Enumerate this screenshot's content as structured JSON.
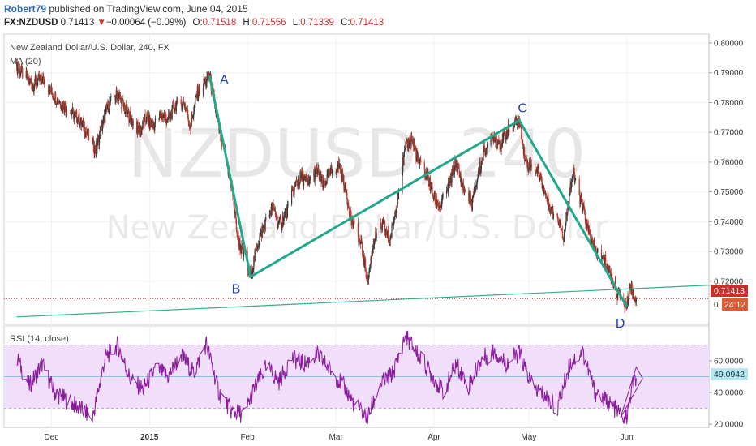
{
  "header": {
    "author": "Robert79",
    "published": "published on TradingView.com, June 04, 2015",
    "symbol": "FX:NZDUSD",
    "last": "0.71413",
    "change_arrow": "▼",
    "change": "−0.00064 (−0.09%)",
    "o_label": "O:",
    "o": "0.71518",
    "h_label": "H:",
    "h": "0.71556",
    "l_label": "L:",
    "l": "0.71339",
    "c_label": "C:",
    "c": "0.71413"
  },
  "price_pane": {
    "title": "New Zealand Dollar/U.S. Dollar, 240, FX",
    "indicator": "MA (20)",
    "watermark_symbol": "NZDUSD, 240",
    "watermark_name": "New Zealand Dollar/U.S. Dollar",
    "price_badge": "0.71413",
    "countdown_badge": "24:12",
    "axis_zero_label": "0"
  },
  "rsi_pane": {
    "title": "RSI (14, close)",
    "value_badge": "49.0942"
  },
  "colors": {
    "pattern": "#1fa88a",
    "trendline": "#2bb08c",
    "rsi_line": "#8b1a9e",
    "rsi_band": "#f1defa",
    "price_badge": "#c9302c",
    "rsi_badge": "#b5e6f0",
    "labels": "#1f3fae"
  },
  "chart_data": [
    {
      "type": "candlestick",
      "title": "New Zealand Dollar/U.S. Dollar, 240, FX",
      "x_tick_labels": [
        "Dec",
        "2015",
        "Feb",
        "Mar",
        "Apr",
        "May",
        "Jun"
      ],
      "y_tick_labels": [
        "0.80000",
        "0.79000",
        "0.78000",
        "0.77000",
        "0.76000",
        "0.75000",
        "0.74000",
        "0.73000",
        "0.72000"
      ],
      "ylim": [
        0.7055,
        0.803
      ],
      "last_price": 0.71413,
      "pattern_points": [
        {
          "label": "A",
          "date": "2015-01-20",
          "price": 0.789
        },
        {
          "label": "B",
          "date": "2015-02-02",
          "price": 0.7215
        },
        {
          "label": "C",
          "date": "2015-04-28",
          "price": 0.774
        },
        {
          "label": "D",
          "date": "2015-06-01",
          "price": 0.7115
        }
      ],
      "trendline": [
        {
          "date": "2014-11-20",
          "price": 0.708
        },
        {
          "date": "2015-06-28",
          "price": 0.7187
        }
      ],
      "close_path": [
        [
          "2014-11-20",
          0.792
        ],
        [
          "2014-11-25",
          0.786
        ],
        [
          "2014-11-28",
          0.788
        ],
        [
          "2014-12-02",
          0.782
        ],
        [
          "2014-12-05",
          0.779
        ],
        [
          "2014-12-08",
          0.776
        ],
        [
          "2014-12-10",
          0.774
        ],
        [
          "2014-12-12",
          0.77
        ],
        [
          "2014-12-15",
          0.764
        ],
        [
          "2014-12-17",
          0.772
        ],
        [
          "2014-12-19",
          0.779
        ],
        [
          "2014-12-22",
          0.783
        ],
        [
          "2014-12-24",
          0.778
        ],
        [
          "2014-12-29",
          0.77
        ],
        [
          "2014-12-31",
          0.775
        ],
        [
          "2015-01-02",
          0.772
        ],
        [
          "2015-01-05",
          0.776
        ],
        [
          "2015-01-07",
          0.774
        ],
        [
          "2015-01-09",
          0.779
        ],
        [
          "2015-01-12",
          0.78
        ],
        [
          "2015-01-14",
          0.772
        ],
        [
          "2015-01-16",
          0.783
        ],
        [
          "2015-01-20",
          0.789
        ],
        [
          "2015-01-22",
          0.777
        ],
        [
          "2015-01-24",
          0.765
        ],
        [
          "2015-01-27",
          0.752
        ],
        [
          "2015-01-29",
          0.734
        ],
        [
          "2015-02-02",
          0.7215
        ],
        [
          "2015-02-04",
          0.732
        ],
        [
          "2015-02-06",
          0.738
        ],
        [
          "2015-02-09",
          0.745
        ],
        [
          "2015-02-11",
          0.739
        ],
        [
          "2015-02-13",
          0.742
        ],
        [
          "2015-02-16",
          0.752
        ],
        [
          "2015-02-18",
          0.755
        ],
        [
          "2015-02-20",
          0.753
        ],
        [
          "2015-02-23",
          0.757
        ],
        [
          "2015-02-25",
          0.752
        ],
        [
          "2015-02-27",
          0.756
        ],
        [
          "2015-03-02",
          0.759
        ],
        [
          "2015-03-04",
          0.751
        ],
        [
          "2015-03-06",
          0.74
        ],
        [
          "2015-03-09",
          0.732
        ],
        [
          "2015-03-11",
          0.72
        ],
        [
          "2015-03-12",
          0.727
        ],
        [
          "2015-03-13",
          0.734
        ],
        [
          "2015-03-16",
          0.739
        ],
        [
          "2015-03-18",
          0.733
        ],
        [
          "2015-03-20",
          0.745
        ],
        [
          "2015-03-23",
          0.765
        ],
        [
          "2015-03-25",
          0.768
        ],
        [
          "2015-03-27",
          0.76
        ],
        [
          "2015-03-30",
          0.755
        ],
        [
          "2015-04-01",
          0.748
        ],
        [
          "2015-04-03",
          0.745
        ],
        [
          "2015-04-06",
          0.753
        ],
        [
          "2015-04-08",
          0.76
        ],
        [
          "2015-04-10",
          0.752
        ],
        [
          "2015-04-13",
          0.746
        ],
        [
          "2015-04-15",
          0.756
        ],
        [
          "2015-04-17",
          0.764
        ],
        [
          "2015-04-20",
          0.769
        ],
        [
          "2015-04-22",
          0.766
        ],
        [
          "2015-04-24",
          0.77
        ],
        [
          "2015-04-28",
          0.774
        ],
        [
          "2015-04-30",
          0.76
        ],
        [
          "2015-05-04",
          0.757
        ],
        [
          "2015-05-06",
          0.75
        ],
        [
          "2015-05-08",
          0.744
        ],
        [
          "2015-05-11",
          0.74
        ],
        [
          "2015-05-12",
          0.734
        ],
        [
          "2015-05-14",
          0.751
        ],
        [
          "2015-05-15",
          0.756
        ],
        [
          "2015-05-18",
          0.745
        ],
        [
          "2015-05-20",
          0.736
        ],
        [
          "2015-05-22",
          0.73
        ],
        [
          "2015-05-25",
          0.727
        ],
        [
          "2015-05-27",
          0.722
        ],
        [
          "2015-05-29",
          0.716
        ],
        [
          "2015-06-01",
          0.7115
        ],
        [
          "2015-06-02",
          0.719
        ],
        [
          "2015-06-03",
          0.716
        ],
        [
          "2015-06-04",
          0.7141
        ]
      ]
    },
    {
      "type": "line",
      "title": "RSI (14, close)",
      "y_tick_labels": [
        "60.0000",
        "40.0000",
        "20.0000"
      ],
      "ylim": [
        18,
        82
      ],
      "band": [
        30,
        70
      ],
      "midline": 50,
      "last_value": 49.0942,
      "series": [
        {
          "values": [
            [
              "2014-11-20",
              62
            ],
            [
              "2014-11-24",
              44
            ],
            [
              "2014-11-28",
              58
            ],
            [
              "2014-12-02",
              40
            ],
            [
              "2014-12-06",
              35
            ],
            [
              "2014-12-10",
              30
            ],
            [
              "2014-12-14",
              24
            ],
            [
              "2014-12-18",
              62
            ],
            [
              "2014-12-22",
              70
            ],
            [
              "2014-12-26",
              48
            ],
            [
              "2014-12-30",
              42
            ],
            [
              "2015-01-03",
              55
            ],
            [
              "2015-01-07",
              50
            ],
            [
              "2015-01-11",
              64
            ],
            [
              "2015-01-15",
              52
            ],
            [
              "2015-01-19",
              71
            ],
            [
              "2015-01-23",
              40
            ],
            [
              "2015-01-27",
              28
            ],
            [
              "2015-01-31",
              26
            ],
            [
              "2015-02-03",
              42
            ],
            [
              "2015-02-07",
              56
            ],
            [
              "2015-02-11",
              47
            ],
            [
              "2015-02-15",
              62
            ],
            [
              "2015-02-19",
              58
            ],
            [
              "2015-02-23",
              64
            ],
            [
              "2015-02-27",
              55
            ],
            [
              "2015-03-03",
              45
            ],
            [
              "2015-03-07",
              32
            ],
            [
              "2015-03-11",
              24
            ],
            [
              "2015-03-15",
              45
            ],
            [
              "2015-03-19",
              52
            ],
            [
              "2015-03-23",
              76
            ],
            [
              "2015-03-27",
              64
            ],
            [
              "2015-03-31",
              52
            ],
            [
              "2015-04-04",
              40
            ],
            [
              "2015-04-08",
              58
            ],
            [
              "2015-04-12",
              44
            ],
            [
              "2015-04-16",
              61
            ],
            [
              "2015-04-20",
              66
            ],
            [
              "2015-04-24",
              58
            ],
            [
              "2015-04-28",
              65
            ],
            [
              "2015-05-02",
              44
            ],
            [
              "2015-05-06",
              38
            ],
            [
              "2015-05-10",
              30
            ],
            [
              "2015-05-14",
              58
            ],
            [
              "2015-05-18",
              66
            ],
            [
              "2015-05-22",
              40
            ],
            [
              "2015-05-26",
              34
            ],
            [
              "2015-05-30",
              26
            ],
            [
              "2015-06-01",
              24
            ],
            [
              "2015-06-03",
              46
            ],
            [
              "2015-06-04",
              49.09
            ]
          ]
        }
      ]
    }
  ]
}
